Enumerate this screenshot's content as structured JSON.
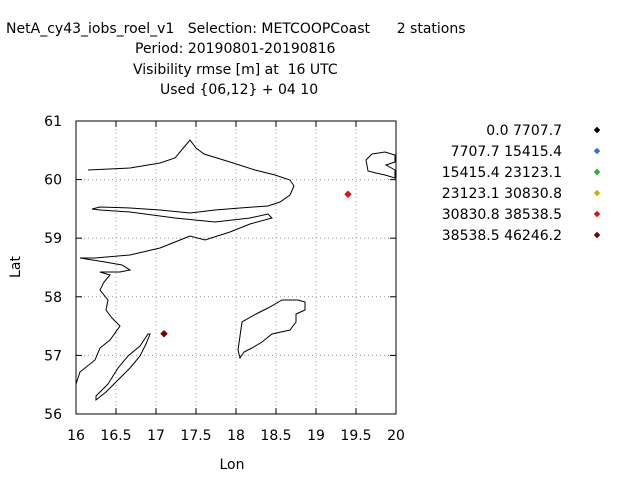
{
  "header": {
    "line1": "p: NetA_cy43_iobs_roel_v1   Selection: METCOOPCoast      2 stations",
    "line2": "Period: 20190801-20190816",
    "line3": "Visibility rmse [m] at  16 UTC",
    "line4": "Used {06,12} + 04 10"
  },
  "chart_data": {
    "type": "scatter",
    "xlabel": "Lon",
    "ylabel": "Lat",
    "xlim": [
      16,
      20
    ],
    "ylim": [
      56,
      61
    ],
    "xticks": [
      "16",
      "16.5",
      "17",
      "17.5",
      "18",
      "18.5",
      "19",
      "19.5",
      "20"
    ],
    "yticks": [
      "56",
      "57",
      "58",
      "59",
      "60",
      "61"
    ],
    "grid": true,
    "legend_position": "right",
    "legend": [
      {
        "label": "0.0 7707.7",
        "color": "#000000"
      },
      {
        "label": "7707.7 15415.4",
        "color": "#3a6fd8"
      },
      {
        "label": "15415.4 23123.1",
        "color": "#1fb81f"
      },
      {
        "label": "23123.1 30830.8",
        "color": "#c8b400"
      },
      {
        "label": "30830.8 38538.5",
        "color": "#e01010"
      },
      {
        "label": "38538.5 46246.2",
        "color": "#7a0000"
      }
    ],
    "points": [
      {
        "lon": 19.4,
        "lat": 59.75,
        "color": "#e01010"
      },
      {
        "lon": 17.1,
        "lat": 57.37,
        "color": "#7a0000"
      }
    ]
  }
}
